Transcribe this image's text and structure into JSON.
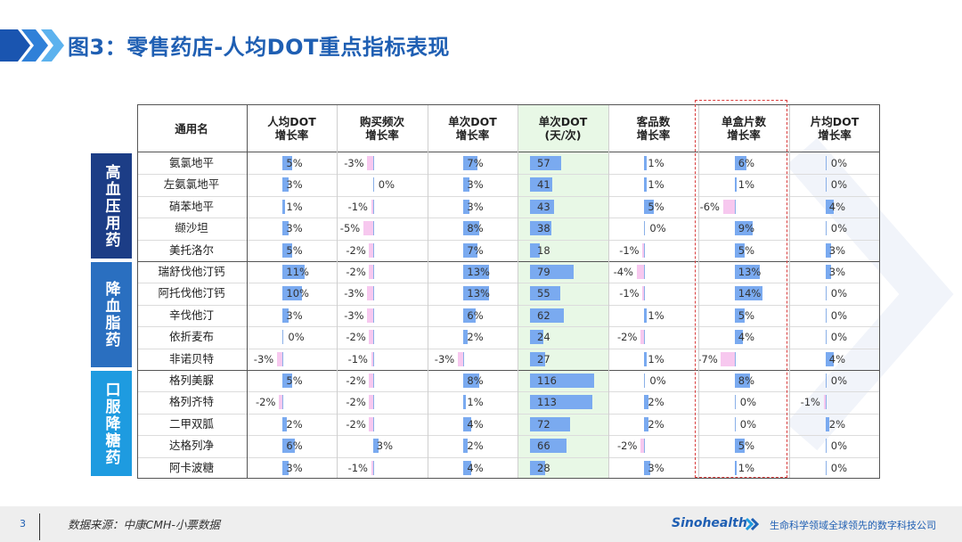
{
  "title": "图3：零售药店-人均DOT重点指标表现",
  "colors": {
    "title": "#1f5fb3",
    "bar_blue": "#7aaaf0",
    "bar_pink": "#f7c8ef",
    "highlight": "#e8f8e6",
    "group_dark": "#1c3d86",
    "group_mid": "#2a6fc0",
    "group_light": "#1e9be0"
  },
  "header": {
    "name": "通用名",
    "cols": [
      "人均DOT\n增长率",
      "购买频次\n增长率",
      "单次DOT\n增长率",
      "单次DOT\n(天/次)",
      "客品数\n增长率",
      "单盒片数\n增长率",
      "片均DOT\n增长率"
    ]
  },
  "groups": [
    {
      "label": "高血压用药",
      "color_key": "group_dark",
      "count": 5
    },
    {
      "label": "降血脂药",
      "color_key": "group_mid",
      "count": 5
    },
    {
      "label": "口服降糖药",
      "color_key": "group_light",
      "count": 5
    }
  ],
  "rows": [
    {
      "name": "氨氯地平",
      "v": [
        5,
        -3,
        7,
        57,
        1,
        6,
        0
      ]
    },
    {
      "name": "左氨氯地平",
      "v": [
        3,
        0,
        3,
        41,
        1,
        1,
        0
      ]
    },
    {
      "name": "硝苯地平",
      "v": [
        1,
        -1,
        3,
        43,
        5,
        -6,
        4
      ]
    },
    {
      "name": "缬沙坦",
      "v": [
        3,
        -5,
        8,
        38,
        0,
        9,
        0
      ]
    },
    {
      "name": "美托洛尔",
      "v": [
        5,
        -2,
        7,
        18,
        -1,
        5,
        3
      ]
    },
    {
      "name": "瑞舒伐他汀钙",
      "v": [
        11,
        -2,
        13,
        79,
        -4,
        13,
        3
      ]
    },
    {
      "name": "阿托伐他汀钙",
      "v": [
        10,
        -3,
        13,
        55,
        -1,
        14,
        0
      ]
    },
    {
      "name": "辛伐他汀",
      "v": [
        3,
        -3,
        6,
        62,
        1,
        5,
        0
      ]
    },
    {
      "name": "依折麦布",
      "v": [
        0,
        -2,
        2,
        24,
        -2,
        4,
        0
      ]
    },
    {
      "name": "非诺贝特",
      "v": [
        -3,
        -1,
        -3,
        27,
        1,
        -7,
        4
      ]
    },
    {
      "name": "格列美脲",
      "v": [
        5,
        -2,
        8,
        116,
        0,
        8,
        0
      ]
    },
    {
      "name": "格列齐特",
      "v": [
        -2,
        -2,
        1,
        113,
        2,
        0,
        -1
      ]
    },
    {
      "name": "二甲双胍",
      "v": [
        2,
        -2,
        4,
        72,
        2,
        0,
        2
      ]
    },
    {
      "name": "达格列净",
      "v": [
        6,
        3,
        2,
        66,
        -2,
        5,
        0
      ]
    },
    {
      "name": "阿卡波糖",
      "v": [
        3,
        -1,
        4,
        28,
        3,
        1,
        0
      ]
    }
  ],
  "footer": {
    "page": "3",
    "source": "数据来源：中康CMH-小票数据",
    "brand": "Sinohealth",
    "slogan": "生命科学领域全球领先的数字科技公司"
  }
}
